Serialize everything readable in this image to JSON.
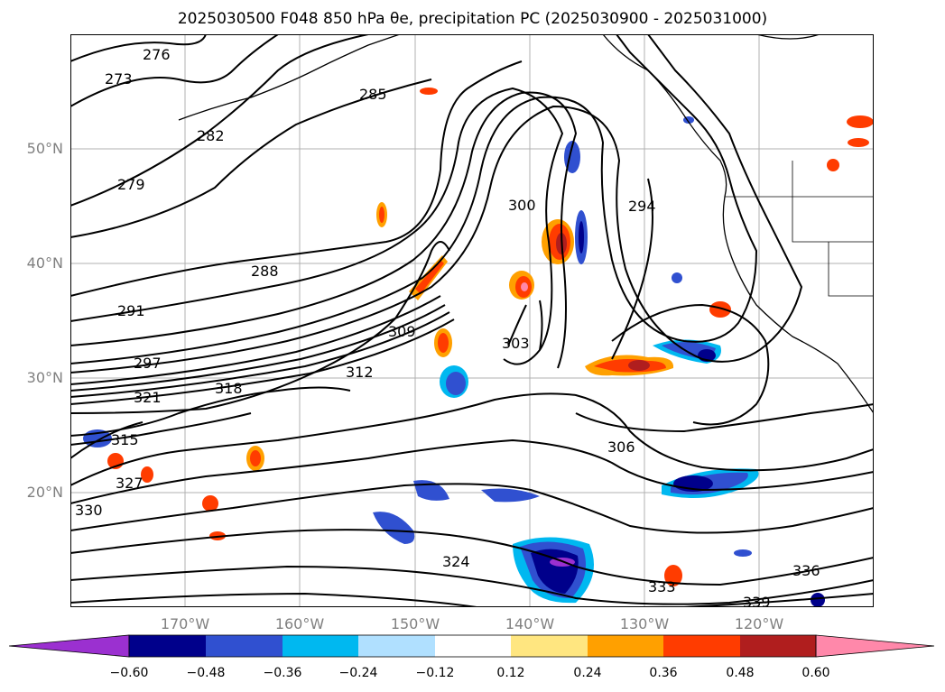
{
  "title": "2025030500 F048 850 hPa θe, precipitation PC (2025030900 - 2025031000)",
  "latitude_labels": [
    "50°N",
    "40°N",
    "30°N",
    "20°N"
  ],
  "longitude_labels": [
    "170°W",
    "160°W",
    "150°W",
    "140°W",
    "130°W",
    "120°W"
  ],
  "contour_labels": [
    "273",
    "276",
    "279",
    "282",
    "285",
    "288",
    "291",
    "294",
    "297",
    "300",
    "303",
    "306",
    "309",
    "312",
    "315",
    "318",
    "321",
    "324",
    "327",
    "330",
    "333",
    "336",
    "339"
  ],
  "colorbar": {
    "tick_labels": [
      "−0.60",
      "−0.48",
      "−0.36",
      "−0.24",
      "−0.12",
      "0.12",
      "0.24",
      "0.36",
      "0.48",
      "0.60"
    ],
    "colors": [
      "#9b30d0",
      "#00008b",
      "#3050d0",
      "#00b8f0",
      "#b0e0ff",
      "#ffffff",
      "#ffe680",
      "#ffa000",
      "#ff3c00",
      "#b01e1e",
      "#ff88aa"
    ]
  },
  "colors": {
    "grid": "#b0b0b0",
    "contour": "#000000",
    "coast": "#000000",
    "axis_label": "#808080"
  }
}
